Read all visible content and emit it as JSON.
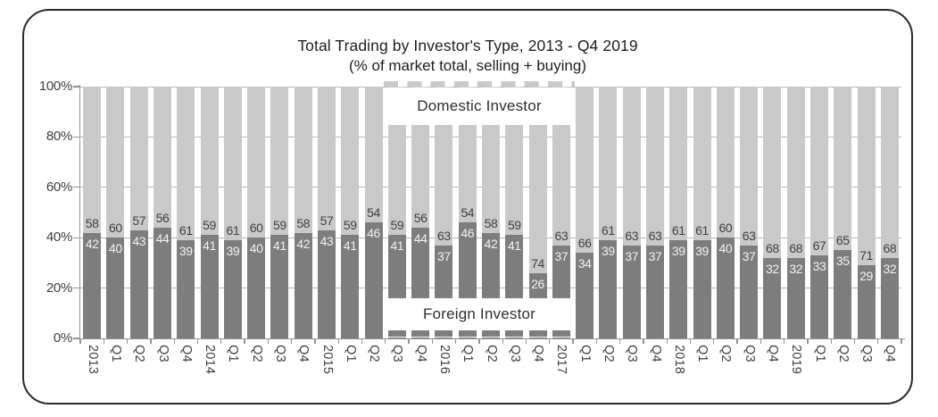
{
  "header": {
    "title": "Total Trading by Investor's Type, 2013 - Q4 2019",
    "subtitle": "(% of market total, selling + buying)"
  },
  "chart_data": {
    "type": "bar",
    "stacked": true,
    "unit": "percent of market total",
    "ylim": [
      0,
      100
    ],
    "y_ticks": [
      "100%",
      "80%",
      "60%",
      "40%",
      "20%",
      "0%"
    ],
    "grid": "horizontal lines every 20%, visible only in gaps between bars",
    "legend_position": "inline white boxes over bars",
    "categories": [
      "2013",
      "Q1",
      "Q2",
      "Q3",
      "Q4",
      "2014",
      "Q1",
      "Q2",
      "Q3",
      "Q4",
      "2015",
      "Q1",
      "Q2",
      "Q3",
      "Q4",
      "2016",
      "Q1",
      "Q2",
      "Q3",
      "Q4",
      "2017",
      "Q1",
      "Q2",
      "Q3",
      "Q4",
      "2018",
      "Q1",
      "Q2",
      "Q3",
      "Q4",
      "2019",
      "Q1",
      "Q2",
      "Q3",
      "Q4"
    ],
    "series": [
      {
        "name": "Foreign Investor",
        "position": "bottom",
        "color": "#7d7d7d",
        "label_color": "#f2f2f2",
        "values": [
          42,
          40,
          43,
          44,
          39,
          41,
          39,
          40,
          41,
          42,
          43,
          41,
          46,
          41,
          44,
          37,
          46,
          42,
          41,
          26,
          37,
          34,
          39,
          37,
          37,
          39,
          39,
          40,
          37,
          32,
          32,
          33,
          35,
          29,
          32
        ]
      },
      {
        "name": "Domestic Investor",
        "position": "top",
        "color": "#c8c9c8",
        "label_color": "#3f3f3f",
        "values": [
          58,
          60,
          57,
          56,
          61,
          59,
          61,
          60,
          59,
          58,
          57,
          59,
          54,
          59,
          56,
          63,
          54,
          58,
          59,
          74,
          63,
          66,
          61,
          63,
          63,
          61,
          61,
          60,
          63,
          68,
          68,
          67,
          65,
          71,
          68
        ]
      }
    ],
    "annotations": [
      {
        "id": "domestic-label",
        "text": "Domestic Investor",
        "placement": "top of bars, Q3 2015 - 2017"
      },
      {
        "id": "foreign-label",
        "text": "Foreign Investor",
        "placement": "bottom of bars, Q3 2015 - 2017"
      }
    ],
    "highlight": {
      "from_category_index": 13,
      "to_category_index": 20,
      "style": "dashed white notch band above and below bars"
    }
  },
  "colors": {
    "card_border": "#2b2b2b",
    "background": "#ffffff",
    "axis": "#949494",
    "gridline": "#b6b6b6",
    "bar_domestic": "#c8c9c8",
    "bar_foreign": "#7d7d7d",
    "value_label_dark": "#3f3f3f",
    "value_label_light": "#f2f2f2",
    "tick_label": "#3f3f3f"
  }
}
